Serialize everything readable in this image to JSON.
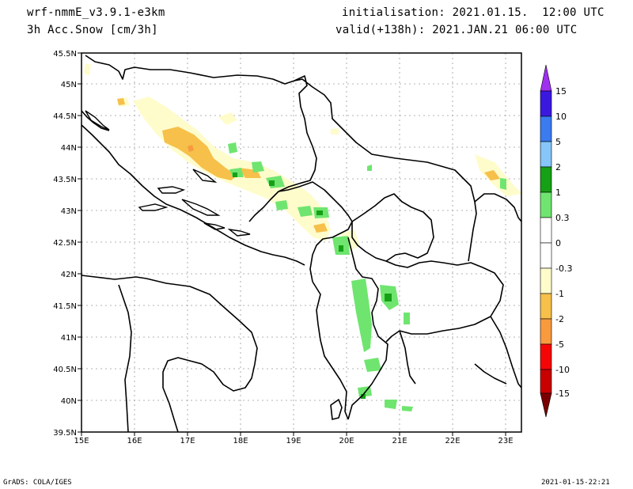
{
  "header": {
    "model": "wrf-nmmE_v3.9.1-e3km",
    "field": "3h Acc.Snow [cm/3h]",
    "init": "initialisation: 2021.01.15.  12:00 UTC",
    "valid": "valid(+138h): 2021.JAN.21 06:00 UTC"
  },
  "axes": {
    "lat_labels": [
      "45.5N",
      "45N",
      "44.5N",
      "44N",
      "43.5N",
      "43N",
      "42.5N",
      "42N",
      "41.5N",
      "41N",
      "40.5N",
      "40N",
      "39.5N"
    ],
    "lon_labels": [
      "15E",
      "16E",
      "17E",
      "18E",
      "19E",
      "20E",
      "21E",
      "22E",
      "23E"
    ]
  },
  "colorbar": {
    "labels": [
      "15",
      "10",
      "5",
      "2",
      "1",
      "0.3",
      "0",
      "-0.3",
      "-1",
      "-2",
      "-5",
      "-10",
      "-15"
    ],
    "colors": [
      "#3b18e0",
      "#3a7bf0",
      "#86c6f8",
      "#16a016",
      "#6fe56f",
      "#ffffff",
      "#ffffff",
      "#fffccc",
      "#f6c04a",
      "#f89a3e",
      "#f50606",
      "#c80000",
      "#8e0000"
    ],
    "top_arrow_color": "#a030f0",
    "bottom_arrow_color": "#7a0000"
  },
  "footer": {
    "left": "GrADS: COLA/IGES",
    "right": "2021-01-15-22:21"
  },
  "colors": {
    "snow_light": "#fffccc",
    "snow_mid": "#f6c04a",
    "rain_light": "#6fe56f",
    "rain_mid": "#16a016"
  }
}
